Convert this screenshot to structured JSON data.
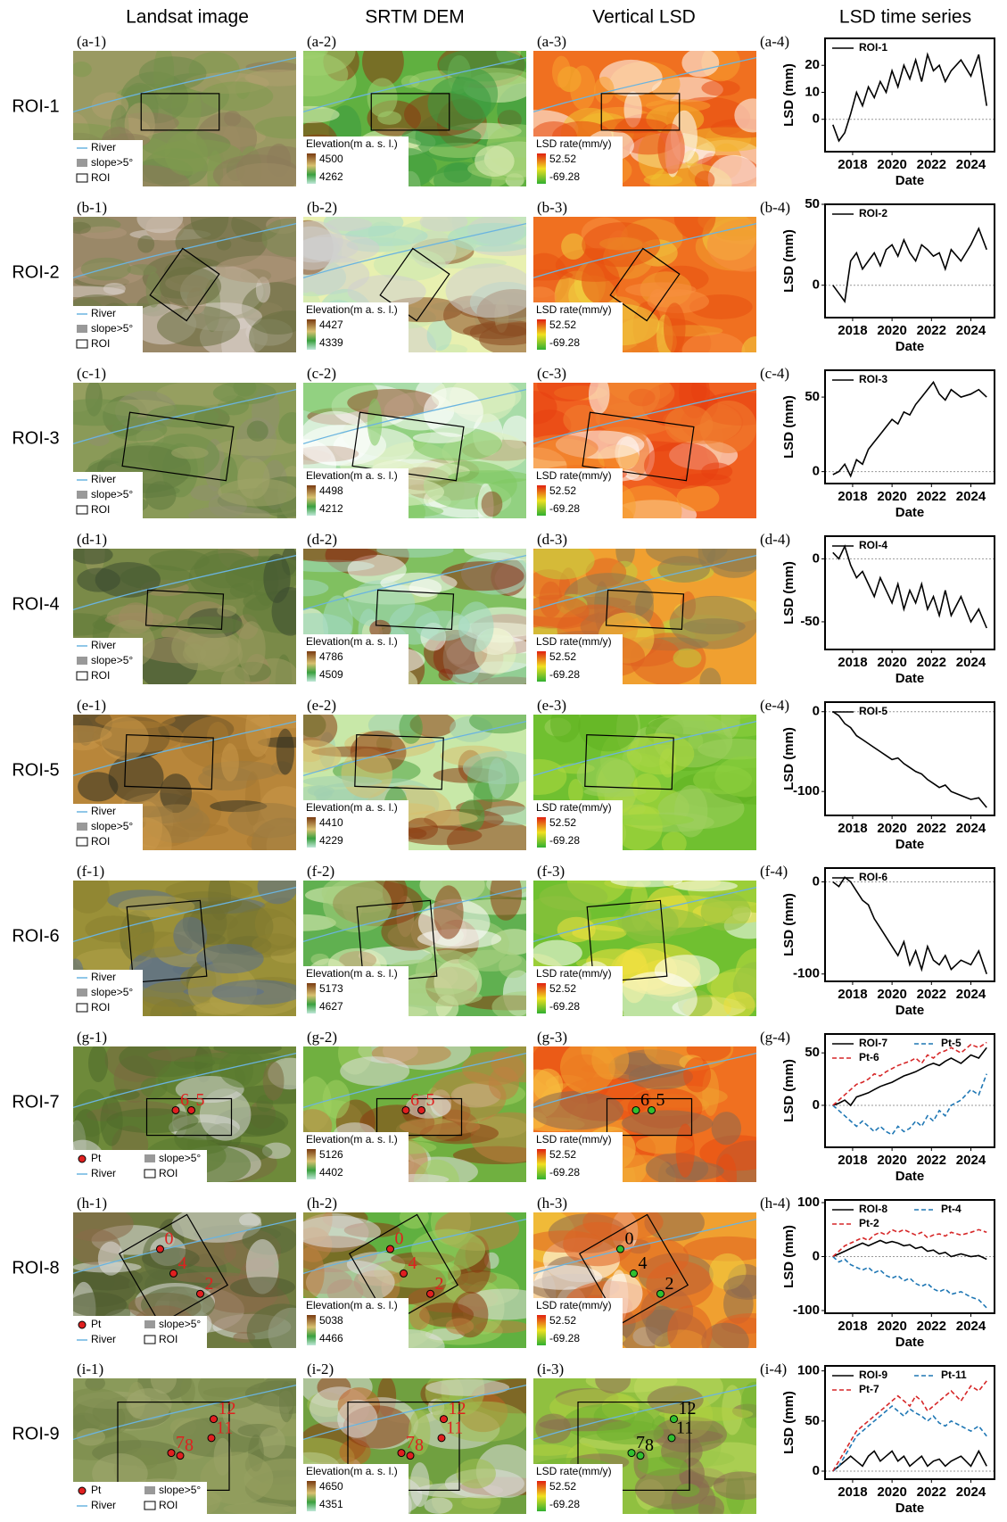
{
  "column_headers": [
    "Landsat image",
    "SRTM DEM",
    "Vertical LSD",
    "LSD time series"
  ],
  "rows": [
    {
      "label": "ROI-1",
      "panels": [
        "(a-1)",
        "(a-2)",
        "(a-3)",
        "(a-4)"
      ],
      "landsat_legend": [
        "River",
        "slope>5°",
        "ROI"
      ],
      "elevation_title": "Elevation(m a. s. l.)",
      "elevation_range": [
        4500,
        4262
      ],
      "lsd_title": "LSD rate(mm/y)",
      "lsd_range": [
        52.52,
        -69.28
      ]
    },
    {
      "label": "ROI-2",
      "panels": [
        "(b-1)",
        "(b-2)",
        "(b-3)",
        "(b-4)"
      ],
      "landsat_legend": [
        "River",
        "slope>5°",
        "ROI"
      ],
      "elevation_title": "Elevation(m a. s. l.)",
      "elevation_range": [
        4427,
        4339
      ],
      "lsd_title": "LSD rate(mm/y)",
      "lsd_range": [
        52.52,
        -69.28
      ]
    },
    {
      "label": "ROI-3",
      "panels": [
        "(c-1)",
        "(c-2)",
        "(c-3)",
        "(c-4)"
      ],
      "landsat_legend": [
        "River",
        "slope>5°",
        "ROI"
      ],
      "elevation_title": "Elevation(m a. s. l.)",
      "elevation_range": [
        4498,
        4212
      ],
      "lsd_title": "LSD rate(mm/y)",
      "lsd_range": [
        52.52,
        -69.28
      ]
    },
    {
      "label": "ROI-4",
      "panels": [
        "(d-1)",
        "(d-2)",
        "(d-3)",
        "(d-4)"
      ],
      "landsat_legend": [
        "River",
        "slope>5°",
        "ROI"
      ],
      "elevation_title": "Elevation(m a. s. l.)",
      "elevation_range": [
        4786,
        4509
      ],
      "lsd_title": "LSD rate(mm/y)",
      "lsd_range": [
        52.52,
        -69.28
      ]
    },
    {
      "label": "ROI-5",
      "panels": [
        "(e-1)",
        "(e-2)",
        "(e-3)",
        "(e-4)"
      ],
      "landsat_legend": [
        "River",
        "slope>5°",
        "ROI"
      ],
      "elevation_title": "Elevation(m a. s. l.)",
      "elevation_range": [
        4410,
        4229
      ],
      "lsd_title": "LSD rate(mm/y)",
      "lsd_range": [
        52.52,
        -69.28
      ]
    },
    {
      "label": "ROI-6",
      "panels": [
        "(f-1)",
        "(f-2)",
        "(f-3)",
        "(f-4)"
      ],
      "landsat_legend": [
        "River",
        "slope>5°",
        "ROI"
      ],
      "elevation_title": "Elevation(m a. s. l.)",
      "elevation_range": [
        5173,
        4627
      ],
      "lsd_title": "LSD rate(mm/y)",
      "lsd_range": [
        52.52,
        -69.28
      ]
    },
    {
      "label": "ROI-7",
      "panels": [
        "(g-1)",
        "(g-2)",
        "(g-3)",
        "(g-4)"
      ],
      "landsat_legend": [
        "Pt",
        "slope>5°",
        "River",
        "ROI"
      ],
      "elevation_title": "Elevation(m a. s. l.)",
      "elevation_range": [
        5126,
        4402
      ],
      "lsd_title": "LSD rate(mm/y)",
      "lsd_range": [
        52.52,
        -69.28
      ],
      "points": [
        "6",
        "5"
      ]
    },
    {
      "label": "ROI-8",
      "panels": [
        "(h-1)",
        "(h-2)",
        "(h-3)",
        "(h-4)"
      ],
      "landsat_legend": [
        "Pt",
        "slope>5°",
        "River",
        "ROI"
      ],
      "elevation_title": "Elevation(m a. s. l.)",
      "elevation_range": [
        5038,
        4466
      ],
      "lsd_title": "LSD rate(mm/y)",
      "lsd_range": [
        52.52,
        -69.28
      ],
      "points": [
        "0",
        "4",
        "2"
      ]
    },
    {
      "label": "ROI-9",
      "panels": [
        "(i-1)",
        "(i-2)",
        "(i-3)",
        "(i-4)"
      ],
      "landsat_legend": [
        "Pt",
        "slope>5°",
        "River",
        "ROI"
      ],
      "elevation_title": "Elevation(m a. s. l.)",
      "elevation_range": [
        4650,
        4351
      ],
      "lsd_title": "LSD rate(mm/y)",
      "lsd_range": [
        52.52,
        -69.28
      ],
      "points": [
        "12",
        "11",
        "7",
        "8"
      ]
    }
  ],
  "chart_data": [
    {
      "type": "line",
      "xlabel": "Date",
      "ylabel": "LSD (mm)",
      "xlim": [
        2016.6,
        2025.2
      ],
      "xticks": [
        2018,
        2020,
        2022,
        2024
      ],
      "ylim": [
        -12,
        30
      ],
      "yticks": [
        0,
        10,
        20
      ],
      "hline": 0,
      "x": [
        2017.0,
        2017.3,
        2017.6,
        2017.9,
        2018.2,
        2018.5,
        2018.8,
        2019.1,
        2019.4,
        2019.7,
        2020.0,
        2020.3,
        2020.6,
        2020.9,
        2021.2,
        2021.5,
        2021.8,
        2022.1,
        2022.4,
        2022.7,
        2023.0,
        2023.5,
        2024.0,
        2024.4,
        2024.8
      ],
      "series": [
        {
          "name": "ROI-1",
          "color": "#000000",
          "dash": false,
          "values": [
            -2,
            -8,
            -5,
            2,
            10,
            5,
            12,
            8,
            14,
            10,
            18,
            12,
            20,
            15,
            22,
            14,
            24,
            18,
            20,
            14,
            18,
            22,
            16,
            24,
            5
          ]
        }
      ]
    },
    {
      "type": "line",
      "xlabel": "Date",
      "ylabel": "LSD (mm)",
      "xlim": [
        2016.6,
        2025.2
      ],
      "xticks": [
        2018,
        2020,
        2022,
        2024
      ],
      "ylim": [
        -20,
        50
      ],
      "yticks": [
        0,
        50
      ],
      "hline": 0,
      "x": [
        2017.0,
        2017.3,
        2017.6,
        2017.9,
        2018.2,
        2018.5,
        2018.8,
        2019.1,
        2019.4,
        2019.7,
        2020.0,
        2020.3,
        2020.6,
        2020.9,
        2021.2,
        2021.5,
        2021.8,
        2022.1,
        2022.4,
        2022.7,
        2023.0,
        2023.5,
        2024.0,
        2024.4,
        2024.8
      ],
      "series": [
        {
          "name": "ROI-2",
          "color": "#000000",
          "dash": false,
          "values": [
            0,
            -5,
            -10,
            15,
            20,
            10,
            15,
            20,
            12,
            22,
            25,
            18,
            28,
            20,
            15,
            25,
            22,
            18,
            20,
            10,
            22,
            15,
            25,
            35,
            22
          ]
        }
      ]
    },
    {
      "type": "line",
      "xlabel": "Date",
      "ylabel": "LSD (mm)",
      "xlim": [
        2016.6,
        2025.2
      ],
      "xticks": [
        2018,
        2020,
        2022,
        2024
      ],
      "ylim": [
        -8,
        68
      ],
      "yticks": [
        0,
        50
      ],
      "hline": 0,
      "x": [
        2017.0,
        2017.3,
        2017.6,
        2017.9,
        2018.2,
        2018.5,
        2018.8,
        2019.1,
        2019.4,
        2019.7,
        2020.0,
        2020.3,
        2020.6,
        2020.9,
        2021.2,
        2021.5,
        2021.8,
        2022.1,
        2022.4,
        2022.7,
        2023.0,
        2023.5,
        2024.0,
        2024.4,
        2024.8
      ],
      "series": [
        {
          "name": "ROI-3",
          "color": "#000000",
          "dash": false,
          "values": [
            -2,
            0,
            5,
            -3,
            8,
            5,
            15,
            20,
            25,
            30,
            35,
            32,
            40,
            38,
            45,
            50,
            55,
            60,
            52,
            48,
            55,
            50,
            52,
            55,
            50
          ]
        }
      ]
    },
    {
      "type": "line",
      "xlabel": "Date",
      "ylabel": "LSD (mm)",
      "xlim": [
        2016.6,
        2025.2
      ],
      "xticks": [
        2018,
        2020,
        2022,
        2024
      ],
      "ylim": [
        -72,
        18
      ],
      "yticks": [
        -50,
        0
      ],
      "hline": 0,
      "x": [
        2017.0,
        2017.3,
        2017.6,
        2017.9,
        2018.2,
        2018.5,
        2018.8,
        2019.1,
        2019.4,
        2019.7,
        2020.0,
        2020.3,
        2020.6,
        2020.9,
        2021.2,
        2021.5,
        2021.8,
        2022.1,
        2022.4,
        2022.7,
        2023.0,
        2023.5,
        2024.0,
        2024.4,
        2024.8
      ],
      "series": [
        {
          "name": "ROI-4",
          "color": "#000000",
          "dash": false,
          "values": [
            5,
            0,
            10,
            -5,
            -15,
            -10,
            -20,
            -30,
            -15,
            -25,
            -35,
            -20,
            -40,
            -25,
            -35,
            -20,
            -40,
            -30,
            -45,
            -25,
            -45,
            -30,
            -50,
            -40,
            -55
          ]
        }
      ]
    },
    {
      "type": "line",
      "xlabel": "Date",
      "ylabel": "LSD (mm)",
      "xlim": [
        2016.6,
        2025.2
      ],
      "xticks": [
        2018,
        2020,
        2022,
        2024
      ],
      "ylim": [
        -130,
        12
      ],
      "yticks": [
        -100,
        0
      ],
      "hline": 0,
      "x": [
        2017.0,
        2017.3,
        2017.6,
        2017.9,
        2018.2,
        2018.5,
        2018.8,
        2019.1,
        2019.4,
        2019.7,
        2020.0,
        2020.3,
        2020.6,
        2020.9,
        2021.2,
        2021.5,
        2021.8,
        2022.1,
        2022.4,
        2022.7,
        2023.0,
        2023.5,
        2024.0,
        2024.4,
        2024.8
      ],
      "series": [
        {
          "name": "ROI-5",
          "color": "#000000",
          "dash": false,
          "values": [
            0,
            -5,
            -15,
            -20,
            -30,
            -35,
            -40,
            -45,
            -50,
            -55,
            -60,
            -58,
            -65,
            -70,
            -75,
            -78,
            -85,
            -90,
            -95,
            -92,
            -100,
            -105,
            -110,
            -108,
            -120
          ]
        }
      ]
    },
    {
      "type": "line",
      "xlabel": "Date",
      "ylabel": "LSD (mm)",
      "xlim": [
        2016.6,
        2025.2
      ],
      "xticks": [
        2018,
        2020,
        2022,
        2024
      ],
      "ylim": [
        -108,
        15
      ],
      "yticks": [
        -100,
        0
      ],
      "hline": 0,
      "x": [
        2017.0,
        2017.3,
        2017.6,
        2017.9,
        2018.2,
        2018.5,
        2018.8,
        2019.1,
        2019.4,
        2019.7,
        2020.0,
        2020.3,
        2020.6,
        2020.9,
        2021.2,
        2021.5,
        2021.8,
        2022.1,
        2022.4,
        2022.7,
        2023.0,
        2023.5,
        2024.0,
        2024.4,
        2024.8
      ],
      "series": [
        {
          "name": "ROI-6",
          "color": "#000000",
          "dash": false,
          "values": [
            0,
            -5,
            5,
            0,
            -10,
            -20,
            -25,
            -40,
            -50,
            -60,
            -70,
            -80,
            -65,
            -90,
            -75,
            -95,
            -70,
            -85,
            -90,
            -80,
            -95,
            -85,
            -90,
            -75,
            -100
          ]
        }
      ]
    },
    {
      "type": "line",
      "xlabel": "Date",
      "ylabel": "LSD (mm)",
      "xlim": [
        2016.6,
        2025.2
      ],
      "xticks": [
        2018,
        2020,
        2022,
        2024
      ],
      "ylim": [
        -40,
        68
      ],
      "yticks": [
        0,
        50
      ],
      "hline": 0,
      "x": [
        2017.0,
        2017.3,
        2017.6,
        2017.9,
        2018.2,
        2018.5,
        2018.8,
        2019.1,
        2019.4,
        2019.7,
        2020.0,
        2020.3,
        2020.6,
        2020.9,
        2021.2,
        2021.5,
        2021.8,
        2022.1,
        2022.4,
        2022.7,
        2023.0,
        2023.5,
        2024.0,
        2024.4,
        2024.8
      ],
      "series": [
        {
          "name": "ROI-7",
          "color": "#000000",
          "dash": false,
          "values": [
            0,
            2,
            5,
            0,
            8,
            10,
            12,
            15,
            18,
            20,
            22,
            25,
            28,
            30,
            32,
            35,
            38,
            40,
            38,
            42,
            45,
            40,
            48,
            45,
            55
          ]
        },
        {
          "name": "Pt-5",
          "color": "#1f77b4",
          "dash": true,
          "values": [
            0,
            -5,
            -10,
            -15,
            -20,
            -15,
            -20,
            -25,
            -20,
            -25,
            -28,
            -20,
            -25,
            -22,
            -15,
            -20,
            -10,
            -15,
            -5,
            -10,
            0,
            5,
            15,
            10,
            30
          ]
        },
        {
          "name": "Pt-6",
          "color": "#d62728",
          "dash": true,
          "values": [
            0,
            5,
            10,
            15,
            20,
            22,
            25,
            30,
            28,
            32,
            35,
            38,
            40,
            42,
            45,
            40,
            48,
            45,
            50,
            52,
            55,
            50,
            58,
            55,
            60
          ]
        }
      ]
    },
    {
      "type": "line",
      "xlabel": "Date",
      "ylabel": "LSD (mm)",
      "xlim": [
        2016.6,
        2025.2
      ],
      "xticks": [
        2018,
        2020,
        2022,
        2024
      ],
      "ylim": [
        -105,
        105
      ],
      "yticks": [
        -100,
        0,
        100
      ],
      "hline": 0,
      "x": [
        2017.0,
        2017.3,
        2017.6,
        2017.9,
        2018.2,
        2018.5,
        2018.8,
        2019.1,
        2019.4,
        2019.7,
        2020.0,
        2020.3,
        2020.6,
        2020.9,
        2021.2,
        2021.5,
        2021.8,
        2022.1,
        2022.4,
        2022.7,
        2023.0,
        2023.5,
        2024.0,
        2024.4,
        2024.8
      ],
      "series": [
        {
          "name": "ROI-8",
          "color": "#000000",
          "dash": false,
          "values": [
            0,
            5,
            10,
            15,
            20,
            25,
            20,
            25,
            30,
            25,
            28,
            25,
            20,
            22,
            15,
            18,
            10,
            12,
            5,
            8,
            0,
            5,
            0,
            2,
            -5
          ]
        },
        {
          "name": "Pt-4",
          "color": "#1f77b4",
          "dash": true,
          "values": [
            0,
            -10,
            -5,
            -15,
            -20,
            -25,
            -20,
            -30,
            -25,
            -35,
            -40,
            -35,
            -45,
            -40,
            -50,
            -55,
            -50,
            -60,
            -65,
            -60,
            -70,
            -65,
            -75,
            -80,
            -95
          ]
        },
        {
          "name": "Pt-2",
          "color": "#d62728",
          "dash": true,
          "values": [
            0,
            10,
            20,
            25,
            30,
            35,
            30,
            40,
            45,
            40,
            50,
            45,
            50,
            45,
            40,
            45,
            35,
            40,
            42,
            38,
            45,
            40,
            45,
            50,
            45
          ]
        }
      ]
    },
    {
      "type": "line",
      "xlabel": "Date",
      "ylabel": "LSD (mm)",
      "xlim": [
        2016.6,
        2025.2
      ],
      "xticks": [
        2018,
        2020,
        2022,
        2024
      ],
      "ylim": [
        -8,
        105
      ],
      "yticks": [
        0,
        50,
        100
      ],
      "hline": 0,
      "x": [
        2017.0,
        2017.3,
        2017.6,
        2017.9,
        2018.2,
        2018.5,
        2018.8,
        2019.1,
        2019.4,
        2019.7,
        2020.0,
        2020.3,
        2020.6,
        2020.9,
        2021.2,
        2021.5,
        2021.8,
        2022.1,
        2022.4,
        2022.7,
        2023.0,
        2023.5,
        2024.0,
        2024.4,
        2024.8
      ],
      "series": [
        {
          "name": "ROI-9",
          "color": "#000000",
          "dash": false,
          "values": [
            0,
            5,
            10,
            15,
            10,
            5,
            15,
            20,
            10,
            15,
            20,
            10,
            15,
            5,
            10,
            15,
            5,
            10,
            12,
            5,
            10,
            15,
            5,
            20,
            5
          ]
        },
        {
          "name": "Pt-11",
          "color": "#1f77b4",
          "dash": true,
          "values": [
            0,
            5,
            15,
            25,
            35,
            40,
            45,
            50,
            55,
            60,
            65,
            60,
            55,
            62,
            58,
            55,
            50,
            55,
            48,
            45,
            50,
            45,
            40,
            45,
            35
          ]
        },
        {
          "name": "Pt-7",
          "color": "#d62728",
          "dash": true,
          "values": [
            0,
            10,
            20,
            30,
            40,
            45,
            50,
            55,
            60,
            65,
            70,
            75,
            70,
            65,
            75,
            70,
            60,
            65,
            70,
            75,
            80,
            70,
            85,
            80,
            90
          ]
        }
      ]
    }
  ]
}
